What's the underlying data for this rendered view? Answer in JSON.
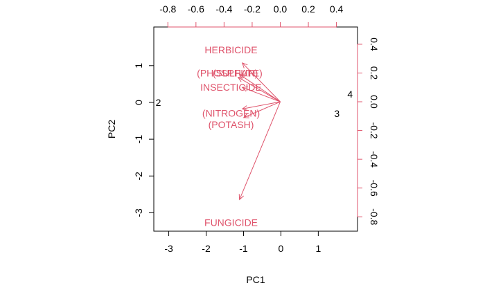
{
  "chart_data": {
    "type": "scatter",
    "title": "",
    "xlabel": "PC1",
    "ylabel": "PC2",
    "xlim": [
      -3.4,
      2.05
    ],
    "ylim": [
      -3.5,
      2.05
    ],
    "xticks": [
      -3,
      -2,
      -1,
      0,
      1
    ],
    "yticks": [
      -3,
      -2,
      -1,
      0,
      1
    ],
    "top_xlim": [
      -0.9,
      0.55
    ],
    "right_ylim": [
      -0.9,
      0.52
    ],
    "top_ticks": [
      -0.8,
      -0.6,
      -0.4,
      -0.2,
      0.0,
      0.2,
      0.4
    ],
    "right_ticks": [
      -0.8,
      -0.6,
      -0.4,
      -0.2,
      0.0,
      0.2,
      0.4
    ],
    "tick_labels": {
      "bottom": [
        "-3",
        "-2",
        "-1",
        "0",
        "1"
      ],
      "left": [
        "-3",
        "-2",
        "-1",
        "0",
        "1"
      ],
      "top": [
        "-0.8",
        "-0.6",
        "-0.4",
        "-0.2",
        "0.0",
        "0.2",
        "0.4"
      ],
      "right": [
        "-0.8",
        "-0.6",
        "-0.4",
        "-0.2",
        "0.0",
        "0.2",
        "0.4"
      ]
    },
    "observations": [
      {
        "label": "2",
        "x": -3.28,
        "y": 0.0
      },
      {
        "label": "4",
        "x": 1.85,
        "y": 0.22
      },
      {
        "label": "3",
        "x": 1.5,
        "y": -0.3
      }
    ],
    "variables": [
      {
        "name": "HERBICIDE",
        "x": -0.27,
        "y": 0.27,
        "label_x": -0.35,
        "label_y": 0.36
      },
      {
        "name": "(PHOSPHATE)",
        "x": -0.29,
        "y": 0.19,
        "label_x": -0.36,
        "label_y": 0.2
      },
      {
        "name": "(SULFUR)",
        "x": -0.3,
        "y": 0.17,
        "label_x": -0.32,
        "label_y": 0.2
      },
      {
        "name": "INSECTICIDE",
        "x": -0.27,
        "y": 0.1,
        "label_x": -0.35,
        "label_y": 0.1
      },
      {
        "name": "(NITROGEN)",
        "x": -0.27,
        "y": -0.05,
        "label_x": -0.35,
        "label_y": -0.08
      },
      {
        "name": "(POTASH)",
        "x": -0.26,
        "y": -0.11,
        "label_x": -0.35,
        "label_y": -0.16
      },
      {
        "name": "FUNGICIDE",
        "x": -0.29,
        "y": -0.68,
        "label_x": -0.35,
        "label_y": -0.84
      }
    ],
    "grid": false,
    "legend": "none"
  },
  "colors": {
    "arrow": "#DF536B",
    "observation": "#000000",
    "axis": "#000000"
  }
}
